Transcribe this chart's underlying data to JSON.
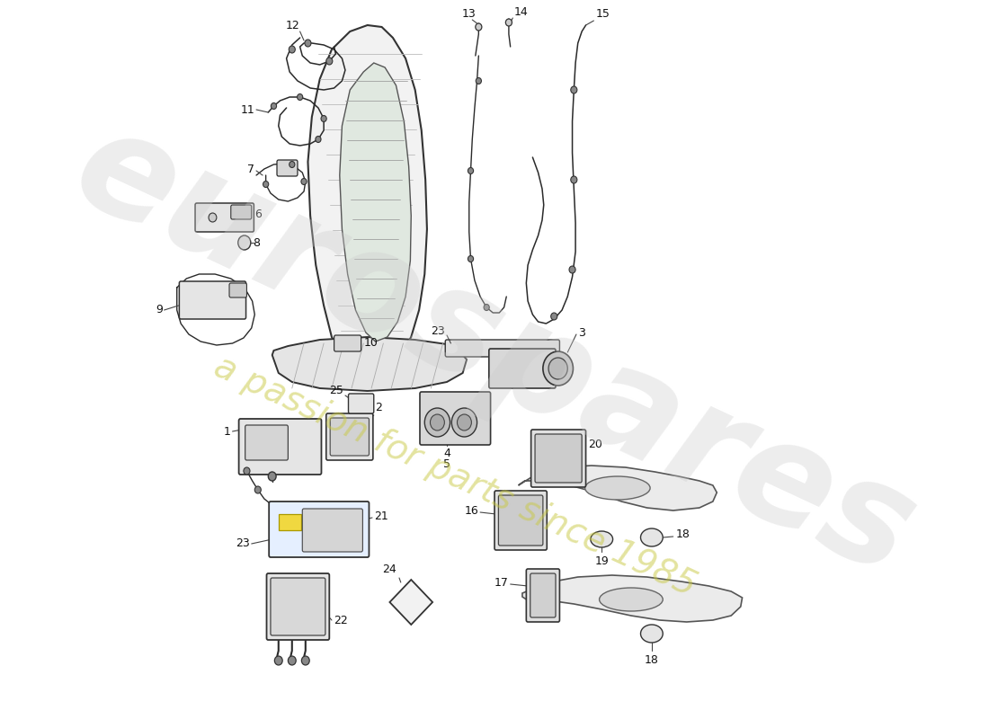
{
  "bg_color": "#ffffff",
  "lc": "#2a2a2a",
  "wm1": "eurospares",
  "wm2": "a passion for parts since 1985",
  "wm1_color": "#c0c0c0",
  "wm2_color": "#c8d060",
  "figw": 11.0,
  "figh": 8.0
}
